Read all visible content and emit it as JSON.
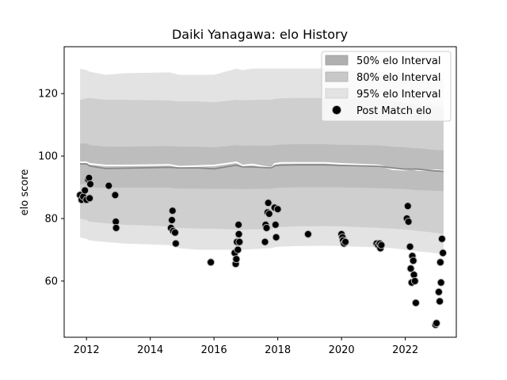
{
  "chart_data": {
    "type": "scatter",
    "title": "Daiki Yanagawa: elo History",
    "xlabel": "",
    "ylabel": "elo score",
    "xlim": [
      2011.3,
      2023.6
    ],
    "ylim": [
      42,
      135
    ],
    "x_ticks": [
      2012,
      2014,
      2016,
      2018,
      2020,
      2022
    ],
    "y_ticks": [
      60,
      80,
      100,
      120
    ],
    "grid": false,
    "legend_position": "top-right",
    "legend": [
      {
        "label": "50% elo Interval",
        "kind": "band",
        "color": "#b0b0b0"
      },
      {
        "label": "80% elo Interval",
        "kind": "band",
        "color": "#c8c8c8"
      },
      {
        "label": "95% elo Interval",
        "kind": "band",
        "color": "#e3e3e3"
      },
      {
        "label": "Post Match elo",
        "kind": "marker",
        "color": "#000000"
      }
    ],
    "colors": {
      "band_95": "#e3e3e3",
      "band_80": "#cfcfcf",
      "band_50": "#bdbdbd",
      "mean_line": "#888888",
      "upper_line": "#ffffff",
      "points": "#000000"
    },
    "bands": {
      "x": [
        2011.8,
        2012.0,
        2012.1,
        2012.6,
        2013.2,
        2014.6,
        2014.9,
        2015.5,
        2016.0,
        2016.7,
        2016.9,
        2017.2,
        2017.8,
        2017.9,
        2018.1,
        2018.6,
        2019.5,
        2020.0,
        2020.5,
        2021.2,
        2021.6,
        2022.0,
        2022.2,
        2022.4,
        2022.9,
        2023.2
      ],
      "mean": [
        97.5,
        97.5,
        96.8,
        96.0,
        96.1,
        96.4,
        96.2,
        96.2,
        95.9,
        97.1,
        96.5,
        96.5,
        96.2,
        96.9,
        97.1,
        97.2,
        97.2,
        97.0,
        96.9,
        96.7,
        96.2,
        95.8,
        95.9,
        95.8,
        95.3,
        95.1
      ],
      "upper": [
        98.0,
        98.0,
        97.5,
        97.0,
        97.0,
        97.2,
        96.6,
        96.8,
        97.0,
        98.0,
        97.0,
        97.3,
        96.2,
        97.5,
        97.8,
        97.8,
        97.8,
        97.5,
        97.3,
        97.0,
        95.8,
        95.6,
        96.0,
        95.5,
        95.5,
        95.3
      ],
      "p50_low": [
        91.0,
        91.0,
        90.0,
        89.8,
        89.9,
        89.9,
        89.6,
        89.6,
        89.5,
        89.5,
        89.4,
        89.5,
        89.6,
        89.8,
        89.9,
        90.0,
        90.0,
        90.0,
        89.9,
        89.7,
        89.6,
        89.4,
        89.2,
        89.1,
        88.9,
        88.8
      ],
      "p50_high": [
        104.0,
        104.0,
        103.5,
        103.0,
        103.0,
        103.2,
        103.0,
        103.0,
        102.8,
        103.5,
        103.3,
        103.4,
        103.3,
        103.5,
        103.7,
        103.8,
        103.8,
        103.6,
        103.5,
        103.4,
        103.0,
        102.8,
        102.6,
        102.5,
        102.0,
        101.8
      ],
      "p80_low": [
        80.0,
        79.5,
        79.0,
        78.5,
        78.0,
        77.5,
        77.0,
        76.8,
        76.8,
        76.5,
        76.5,
        76.6,
        76.6,
        77.0,
        77.3,
        77.5,
        77.6,
        77.5,
        77.3,
        77.0,
        76.8,
        76.5,
        76.3,
        76.0,
        75.5,
        75.0
      ],
      "p80_high": [
        118.0,
        118.5,
        118.6,
        118.0,
        118.0,
        117.8,
        117.5,
        117.5,
        117.2,
        118.0,
        117.8,
        118.0,
        118.0,
        118.3,
        118.5,
        118.6,
        118.6,
        118.3,
        118.1,
        118.0,
        117.5,
        117.0,
        116.8,
        116.5,
        116.0,
        115.5
      ],
      "p95_low": [
        74.0,
        73.5,
        73.0,
        72.5,
        72.0,
        71.5,
        70.5,
        70.0,
        70.0,
        70.0,
        70.0,
        70.2,
        70.5,
        70.8,
        71.0,
        71.2,
        71.3,
        71.2,
        71.0,
        70.8,
        70.5,
        70.0,
        69.8,
        69.5,
        69.0,
        68.5
      ],
      "p95_high": [
        128.0,
        127.5,
        127.0,
        126.0,
        126.5,
        126.8,
        126.0,
        126.0,
        126.0,
        128.0,
        127.5,
        128.0,
        128.0,
        128.0,
        128.0,
        128.0,
        128.0,
        127.6,
        127.3,
        127.0,
        126.5,
        126.0,
        125.8,
        125.5,
        125.0,
        124.5
      ]
    },
    "points": [
      {
        "x": 2011.8,
        "y": 87.5
      },
      {
        "x": 2011.85,
        "y": 86.0
      },
      {
        "x": 2011.9,
        "y": 87.0
      },
      {
        "x": 2011.95,
        "y": 89.0
      },
      {
        "x": 2012.0,
        "y": 86.0
      },
      {
        "x": 2012.05,
        "y": 92.5
      },
      {
        "x": 2012.08,
        "y": 93.0
      },
      {
        "x": 2012.1,
        "y": 86.5
      },
      {
        "x": 2012.12,
        "y": 91.0
      },
      {
        "x": 2012.7,
        "y": 90.5
      },
      {
        "x": 2012.9,
        "y": 87.5
      },
      {
        "x": 2012.92,
        "y": 79.0
      },
      {
        "x": 2012.93,
        "y": 77.0
      },
      {
        "x": 2014.65,
        "y": 77.0
      },
      {
        "x": 2014.68,
        "y": 79.5
      },
      {
        "x": 2014.7,
        "y": 82.5
      },
      {
        "x": 2014.72,
        "y": 76.0
      },
      {
        "x": 2014.78,
        "y": 75.5
      },
      {
        "x": 2014.8,
        "y": 72.0
      },
      {
        "x": 2015.9,
        "y": 66.0
      },
      {
        "x": 2016.65,
        "y": 69.0
      },
      {
        "x": 2016.68,
        "y": 65.5
      },
      {
        "x": 2016.7,
        "y": 67.0
      },
      {
        "x": 2016.72,
        "y": 72.5
      },
      {
        "x": 2016.75,
        "y": 70.0
      },
      {
        "x": 2016.77,
        "y": 78.0
      },
      {
        "x": 2016.78,
        "y": 75.0
      },
      {
        "x": 2016.8,
        "y": 72.5
      },
      {
        "x": 2017.6,
        "y": 72.5
      },
      {
        "x": 2017.62,
        "y": 78.0
      },
      {
        "x": 2017.65,
        "y": 77.0
      },
      {
        "x": 2017.68,
        "y": 82.0
      },
      {
        "x": 2017.7,
        "y": 85.0
      },
      {
        "x": 2017.73,
        "y": 81.5
      },
      {
        "x": 2017.9,
        "y": 83.5
      },
      {
        "x": 2017.93,
        "y": 78.0
      },
      {
        "x": 2017.95,
        "y": 74.0
      },
      {
        "x": 2018.0,
        "y": 83.0
      },
      {
        "x": 2018.95,
        "y": 75.0
      },
      {
        "x": 2020.0,
        "y": 75.0
      },
      {
        "x": 2020.03,
        "y": 74.0
      },
      {
        "x": 2020.05,
        "y": 73.0
      },
      {
        "x": 2020.08,
        "y": 72.0
      },
      {
        "x": 2020.12,
        "y": 72.5
      },
      {
        "x": 2021.1,
        "y": 72.0
      },
      {
        "x": 2021.15,
        "y": 71.5
      },
      {
        "x": 2021.2,
        "y": 72.0
      },
      {
        "x": 2021.22,
        "y": 70.5
      },
      {
        "x": 2021.25,
        "y": 71.5
      },
      {
        "x": 2022.05,
        "y": 80.0
      },
      {
        "x": 2022.08,
        "y": 84.0
      },
      {
        "x": 2022.1,
        "y": 79.0
      },
      {
        "x": 2022.15,
        "y": 71.0
      },
      {
        "x": 2022.17,
        "y": 64.0
      },
      {
        "x": 2022.2,
        "y": 59.5
      },
      {
        "x": 2022.22,
        "y": 68.0
      },
      {
        "x": 2022.25,
        "y": 66.5
      },
      {
        "x": 2022.27,
        "y": 62.0
      },
      {
        "x": 2022.3,
        "y": 60.0
      },
      {
        "x": 2022.33,
        "y": 53.0
      },
      {
        "x": 2022.95,
        "y": 46.0
      },
      {
        "x": 2022.98,
        "y": 46.5
      },
      {
        "x": 2023.05,
        "y": 56.5
      },
      {
        "x": 2023.08,
        "y": 53.5
      },
      {
        "x": 2023.1,
        "y": 66.0
      },
      {
        "x": 2023.12,
        "y": 59.5
      },
      {
        "x": 2023.15,
        "y": 73.5
      },
      {
        "x": 2023.18,
        "y": 69.0
      }
    ]
  }
}
